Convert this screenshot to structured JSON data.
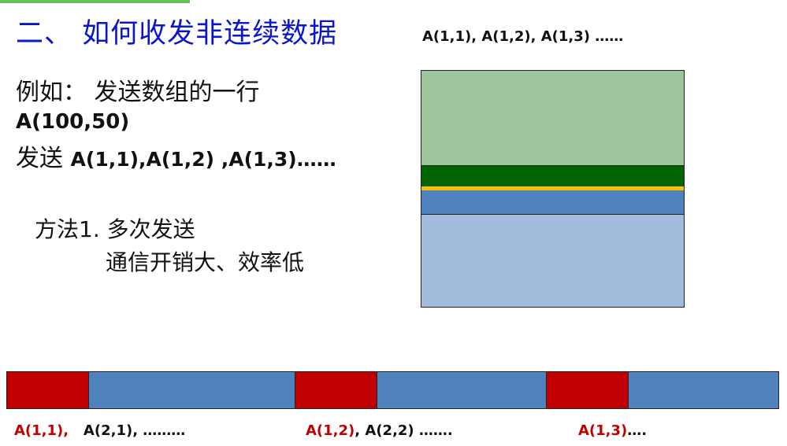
{
  "slide": {
    "title": "二、 如何收发非连续数据",
    "top_sequence": "A(1,1), A(1,2), A(1,3) ……",
    "example_line1": "例如： 发送数组的一行",
    "example_array": "A(100,50)",
    "example_send_prefix": "发送 ",
    "example_send_values": "A(1,1),A(1,2) ,A(1,3)……",
    "method_line1": "方法1. 多次发送",
    "method_line2": "通信开销大、效率低"
  },
  "matrix_colors": {
    "upper_block": "#9fc59d",
    "row_band": "#006400",
    "highlight_line": "#ffc000",
    "middle_band": "#4f81bd",
    "lower_block": "#a3bcdd"
  },
  "memory_strip": {
    "segments": [
      {
        "kind": "selected",
        "color": "#c00000"
      },
      {
        "kind": "other",
        "color": "#4f81bd"
      },
      {
        "kind": "selected",
        "color": "#c00000"
      },
      {
        "kind": "other",
        "color": "#4f81bd"
      },
      {
        "kind": "selected",
        "color": "#c00000"
      },
      {
        "kind": "other",
        "color": "#4f81bd"
      }
    ]
  },
  "captions": {
    "c1_red": "A(1,1),",
    "c1_dark": "A(2,1), ………",
    "c2_red": "A(1,2)",
    "c2_dark": ", A(2,2) …….",
    "c3_red": "A(1,3)",
    "c3_dark": "…."
  }
}
